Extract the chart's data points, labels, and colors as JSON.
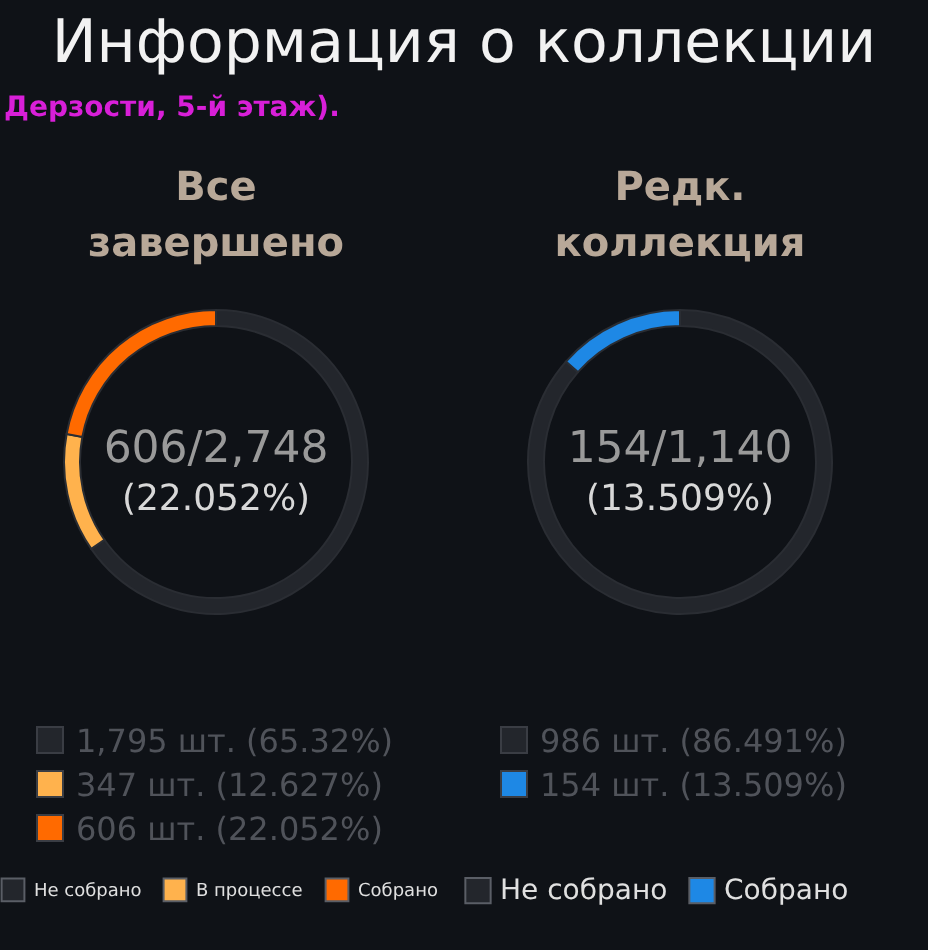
{
  "chart_data": [
    {
      "type": "donut",
      "title": "Информация о коллекции",
      "subtitle": "Все завершено",
      "annotations": [
        "Дерзости, 5-й этаж).",
        "606/2,748",
        "(22.052%)",
        "1,795 шт. (65.32%)",
        "347 шт. (12.627%)",
        "606 шт. (22.052%)"
      ],
      "categories": [
        "Не собрано",
        "В процессе",
        "Собрано"
      ],
      "values": [
        65.32,
        12.627,
        22.052
      ],
      "colors": [
        "#23262c",
        "#ffb24d",
        "#ff6a00"
      ],
      "legend": "bottom"
    },
    {
      "type": "donut",
      "subtitle": "Редк. коллекция",
      "annotations": [
        "154/1,140",
        "(13.509%)",
        "986 шт. (86.491%)",
        "154 шт. (13.509%)"
      ],
      "categories": [
        "Не собрано",
        "Собрано"
      ],
      "values": [
        86.491,
        13.509
      ],
      "colors": [
        "#23262c",
        "#1e88e5"
      ],
      "legend": "bottom"
    }
  ]
}
